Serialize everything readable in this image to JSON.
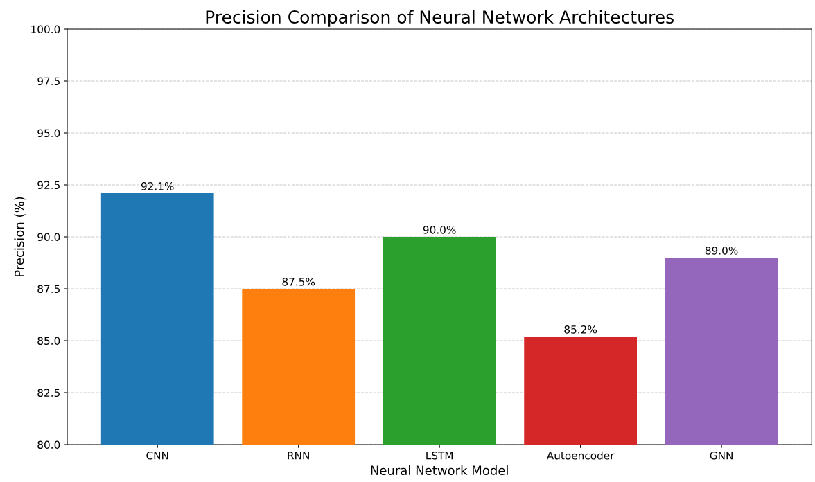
{
  "chart_data": {
    "type": "bar",
    "title": "Precision Comparison of Neural Network Architectures",
    "xlabel": "Neural Network Model",
    "ylabel": "Precision (%)",
    "categories": [
      "CNN",
      "RNN",
      "LSTM",
      "Autoencoder",
      "GNN"
    ],
    "values": [
      92.1,
      87.5,
      90.0,
      85.2,
      89.0
    ],
    "colors": [
      "#1f77b4",
      "#ff7f0e",
      "#2ca02c",
      "#d62728",
      "#9467bd"
    ],
    "value_labels": [
      "92.1%",
      "87.5%",
      "90.0%",
      "85.2%",
      "89.0%"
    ],
    "ylim": [
      80,
      100
    ],
    "yticks": [
      {
        "value": 80,
        "label": "80.0"
      },
      {
        "value": 82.5,
        "label": "82.5"
      },
      {
        "value": 85,
        "label": "85.0"
      },
      {
        "value": 87.5,
        "label": "87.5"
      },
      {
        "value": 90,
        "label": "90.0"
      },
      {
        "value": 92.5,
        "label": "92.5"
      },
      {
        "value": 95,
        "label": "95.0"
      },
      {
        "value": 97.5,
        "label": "97.5"
      },
      {
        "value": 100,
        "label": "100.0"
      }
    ],
    "grid": "y"
  }
}
